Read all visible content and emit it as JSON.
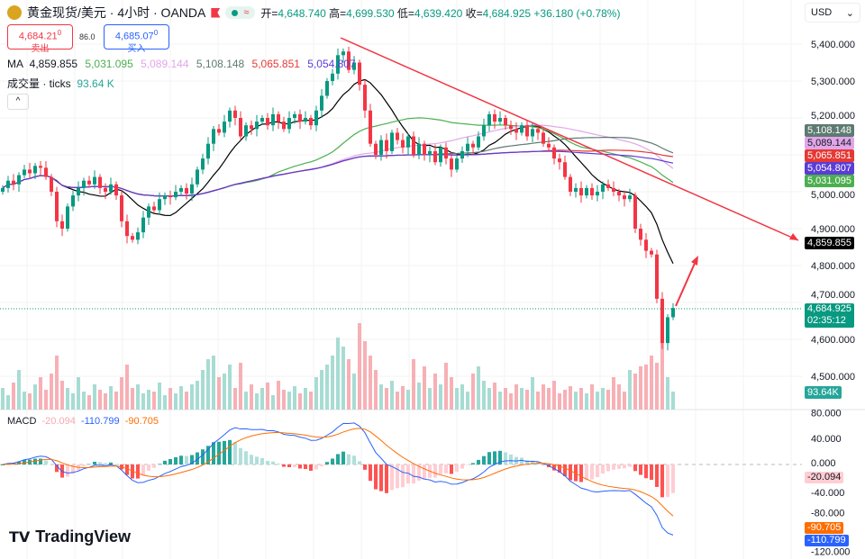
{
  "header": {
    "symbol": "黄金现货/美元 · 4小时 · OANDA",
    "open_label": "开=",
    "open": "4,648.740",
    "high_label": "高=",
    "high": "4,699.530",
    "low_label": "低=",
    "low": "4,639.420",
    "close_label": "收=",
    "close": "4,684.925",
    "change": "+36.180 (+0.78%)",
    "status_symbol": "≈"
  },
  "trade": {
    "sell_price": "4,684.21",
    "sell_sup": "0",
    "sell_label": "卖出",
    "spread": "86.0",
    "buy_price": "4,685.07",
    "buy_sup": "0",
    "buy_label": "买入"
  },
  "legend": {
    "ma_label": "MA",
    "ma_values": [
      "4,859.855",
      "5,031.095",
      "5,089.144",
      "5,108.148",
      "5,065.851",
      "5,054.807"
    ],
    "volume_label": "成交量 · ticks",
    "volume_value": "93.64 K",
    "macd_label": "MACD",
    "macd_values": [
      "-20.094",
      "-110.799",
      "-90.705"
    ],
    "collapse": "^"
  },
  "currency": "USD",
  "brand": "TradingView",
  "colors": {
    "up": "#089981",
    "down": "#f23645",
    "ma": [
      "#000000",
      "#4caf50",
      "#e1a6e8",
      "#5d7b70",
      "#e53935",
      "#5b3cd6"
    ],
    "macd": "#2962ff",
    "signal": "#ff6d00"
  },
  "price_axis": [
    "5,400.000",
    "5,300.000",
    "5,200.000",
    "5,000.000",
    "4,900.000",
    "4,800.000",
    "4,700.000",
    "4,600.000",
    "4,500.000"
  ],
  "macd_axis": [
    "80.000",
    "40.000",
    "0.000",
    "-40.000",
    "-80.000",
    "-120.000"
  ],
  "tags": {
    "ma": [
      "5,108.148",
      "5,089.144",
      "5,065.851",
      "5,054.807",
      "5,031.095"
    ],
    "ma_fast": "4,859.855",
    "last_price": "4,684.925",
    "countdown": "02:35:12",
    "volume": "93.64K",
    "hist": "-20.094",
    "signal": "-90.705",
    "macd": "-110.799"
  },
  "chart_data": {
    "type": "candlestick",
    "ylim": [
      4440,
      5460
    ],
    "close": [
      5010,
      5030,
      5020,
      5045,
      5060,
      5050,
      5070,
      5065,
      5040,
      5000,
      4920,
      4900,
      4960,
      4990,
      5010,
      5030,
      5020,
      5040,
      5010,
      5000,
      5020,
      4990,
      4920,
      4880,
      4870,
      4890,
      4930,
      4960,
      4950,
      4980,
      4990,
      4985,
      5000,
      5010,
      4995,
      5020,
      5060,
      5090,
      5130,
      5170,
      5160,
      5190,
      5220,
      5200,
      5150,
      5180,
      5170,
      5190,
      5200,
      5180,
      5210,
      5190,
      5170,
      5200,
      5210,
      5190,
      5200,
      5180,
      5220,
      5260,
      5300,
      5320,
      5370,
      5380,
      5330,
      5350,
      5290,
      5220,
      5130,
      5100,
      5140,
      5110,
      5160,
      5140,
      5120,
      5150,
      5100,
      5130,
      5100,
      5110,
      5080,
      5120,
      5090,
      5060,
      5090,
      5110,
      5130,
      5120,
      5150,
      5180,
      5210,
      5190,
      5200,
      5180,
      5170,
      5160,
      5180,
      5150,
      5170,
      5160,
      5130,
      5120,
      5090,
      5080,
      5040,
      5000,
      5010,
      4990,
      5010,
      4990,
      5000,
      5020,
      5010,
      5000,
      4990,
      4980,
      4990,
      4900,
      4870,
      4840,
      4830,
      4710,
      4590,
      4660,
      4685
    ],
    "volume": [
      12,
      8,
      15,
      22,
      10,
      9,
      14,
      18,
      11,
      20,
      30,
      16,
      12,
      9,
      18,
      10,
      8,
      14,
      11,
      9,
      13,
      10,
      18,
      25,
      12,
      14,
      9,
      11,
      10,
      15,
      8,
      12,
      9,
      13,
      10,
      14,
      16,
      22,
      28,
      30,
      18,
      20,
      25,
      12,
      26,
      10,
      14,
      9,
      12,
      15,
      8,
      16,
      11,
      10,
      13,
      9,
      12,
      10,
      18,
      22,
      25,
      30,
      40,
      35,
      28,
      20,
      48,
      38,
      30,
      22,
      14,
      12,
      16,
      10,
      13,
      11,
      28,
      15,
      24,
      12,
      20,
      14,
      26,
      18,
      12,
      14,
      10,
      20,
      24,
      16,
      12,
      15,
      10,
      12,
      9,
      14,
      12,
      11,
      18,
      10,
      14,
      12,
      16,
      9,
      11,
      13,
      10,
      12,
      9,
      14,
      10,
      12,
      11,
      18,
      14,
      10,
      22,
      20,
      24,
      25,
      30,
      26,
      45,
      18,
      10
    ]
  }
}
